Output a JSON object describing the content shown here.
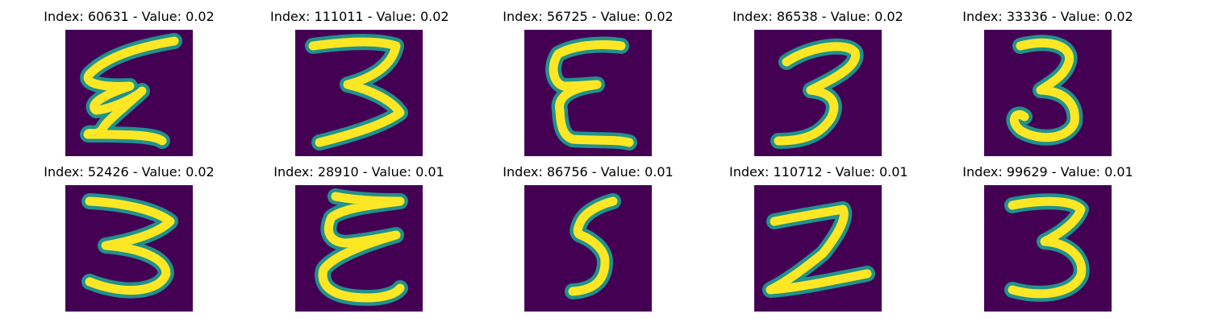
{
  "panels": [
    {
      "title": "Index: 60631 - Value: 0.02"
    },
    {
      "title": "Index: 111011 - Value: 0.02"
    },
    {
      "title": "Index: 56725 - Value: 0.02"
    },
    {
      "title": "Index: 86538 - Value: 0.02"
    },
    {
      "title": "Index: 33336 - Value: 0.02"
    },
    {
      "title": "Index: 52426 - Value: 0.02"
    },
    {
      "title": "Index: 28910 - Value: 0.01"
    },
    {
      "title": "Index: 86756 - Value: 0.01"
    },
    {
      "title": "Index: 110712 - Value: 0.01"
    },
    {
      "title": "Index: 99629 - Value: 0.01"
    }
  ],
  "colors": {
    "background": "#440154",
    "stroke_edge": "#21918c",
    "stroke_core": "#fde725"
  }
}
